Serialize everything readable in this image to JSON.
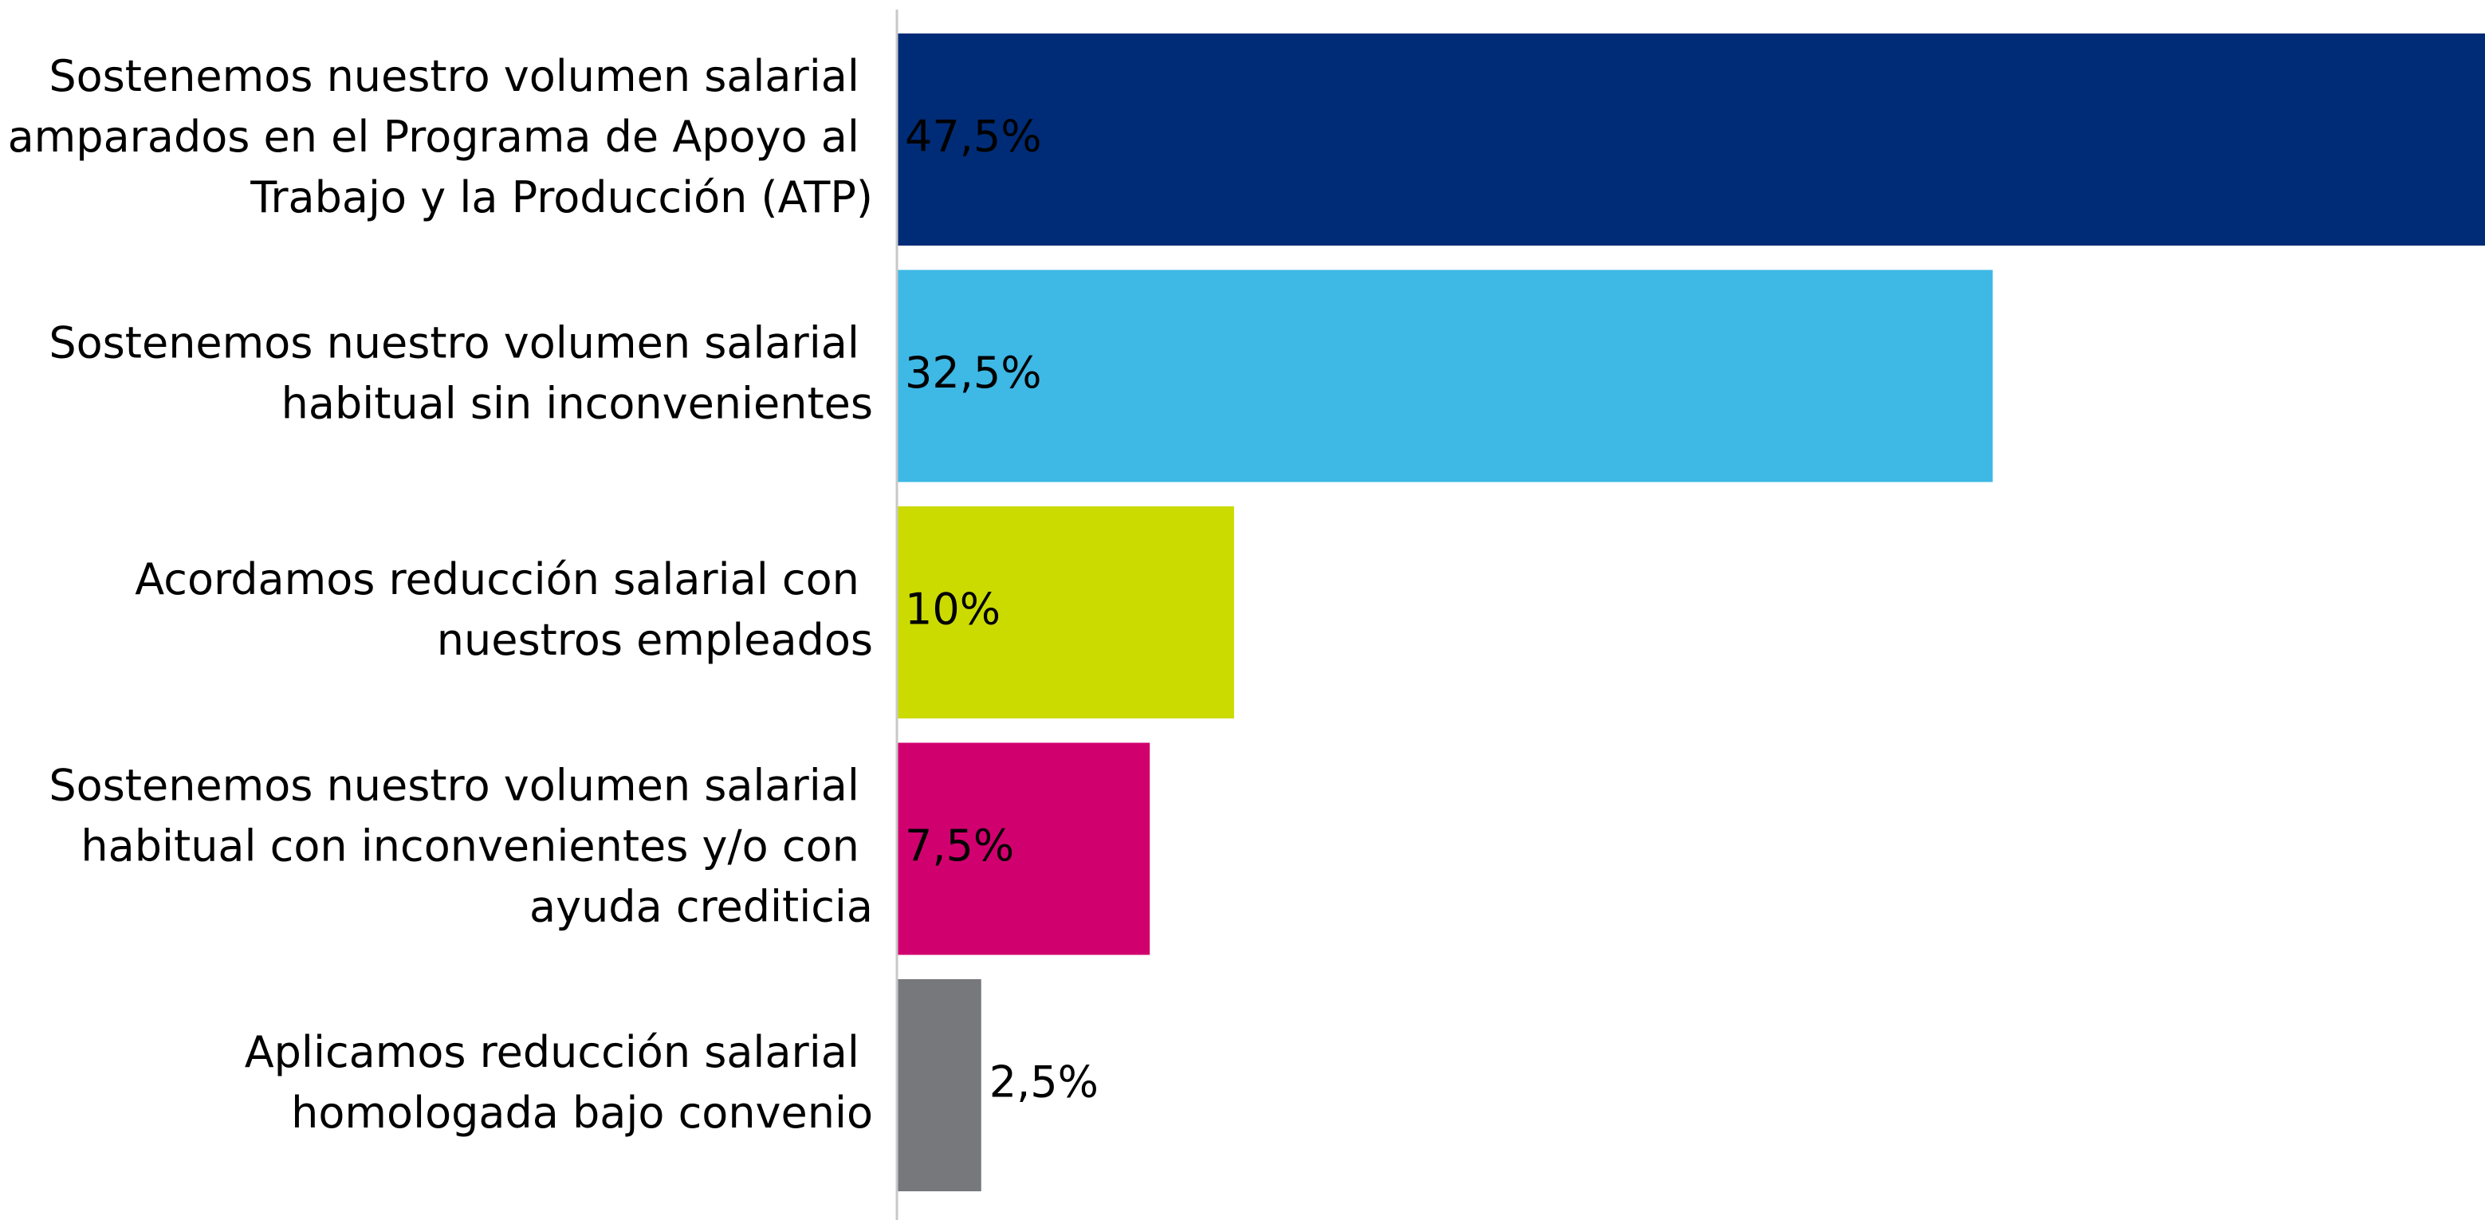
{
  "chart_data": {
    "type": "bar",
    "orientation": "horizontal",
    "categories": [
      "Sostenemos nuestro volumen salarial amparados en el Programa de Apoyo al Trabajo y la Producción (ATP)",
      "Sostenemos nuestro volumen salarial habitual sin inconvenientes",
      "Acordamos reducción salarial con nuestros empleados",
      "Sostenemos nuestro volumen salarial habitual con inconvenientes y/o con ayuda crediticia",
      "Aplicamos reducción salarial homologada bajo convenio"
    ],
    "values": [
      47.5,
      32.5,
      10,
      7.5,
      2.5
    ],
    "value_labels": [
      "47,5%",
      "32,5%",
      "10%",
      "7,5%",
      "2,5%"
    ],
    "colors": [
      "#002c77",
      "#3eb8e5",
      "#cbdb00",
      "#d1006f",
      "#77787b"
    ],
    "label_colors": [
      "#ffffff",
      "#000000",
      "#000000",
      "#ffffff",
      "#000000"
    ],
    "xlim": [
      0,
      47.1
    ]
  }
}
